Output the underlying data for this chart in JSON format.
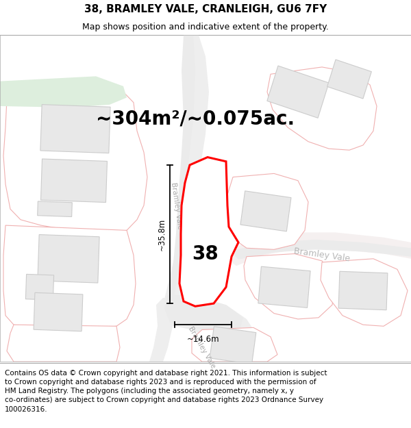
{
  "title": "38, BRAMLEY VALE, CRANLEIGH, GU6 7FY",
  "subtitle": "Map shows position and indicative extent of the property.",
  "area_text": "~304m²/~0.075ac.",
  "dim_height": "~35.8m",
  "dim_width": "~14.6m",
  "label_38": "38",
  "footer": "Contains OS data © Crown copyright and database right 2021. This information is subject to Crown copyright and database rights 2023 and is reproduced with the permission of HM Land Registry. The polygons (including the associated geometry, namely x, y co-ordinates) are subject to Crown copyright and database rights 2023 Ordnance Survey 100026316.",
  "map_bg": "#ffffff",
  "road_fill": "#f0e8e8",
  "road_edge": "#e8c0c0",
  "building_fill": "#e8e8e8",
  "building_edge": "#cccccc",
  "prop_edge_fill": "#f8f8f8",
  "prop_edge_col": "#f0a0a0",
  "green_fill": "#ddeedd",
  "plot_fill": "#ffffff",
  "plot_edge": "#ff0000",
  "title_fontsize": 11,
  "subtitle_fontsize": 9,
  "area_fontsize": 20,
  "footer_fontsize": 7.5
}
